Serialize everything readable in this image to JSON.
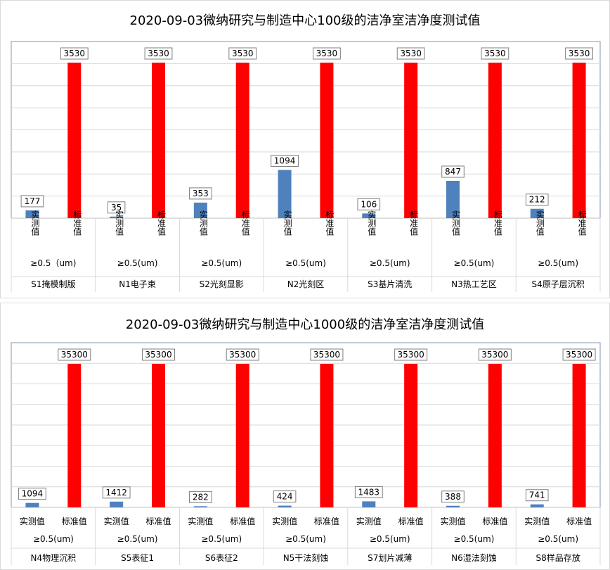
{
  "chart_data": [
    {
      "type": "bar",
      "title": "2020-09-03微纳研究与制造中心100级的洁净室洁净度测试值",
      "series": [
        {
          "name": "实测值",
          "color": "#4f81bd",
          "values": [
            177,
            35,
            353,
            1094,
            106,
            847,
            212
          ]
        },
        {
          "name": "标准值",
          "color": "#ff0000",
          "values": [
            3530,
            3530,
            3530,
            3530,
            3530,
            3530,
            3530
          ]
        }
      ],
      "particle_labels": [
        "≥0.5（um)",
        "≥0.5(um)",
        "≥0.5(um)",
        "≥0.5(um)",
        "≥0.5(um)",
        "≥0.5(um)",
        "≥0.5(um)"
      ],
      "categories": [
        "S1掩模制版",
        "N1电子束",
        "S2光刻显影",
        "N2光刻区",
        "S3基片清洗",
        "N3热工艺区",
        "S4原子层沉积"
      ],
      "ylim": [
        0,
        3530
      ],
      "grid": true,
      "vertical_series_labels": true
    },
    {
      "type": "bar",
      "title": "2020-09-03微纳研究与制造中心1000级的洁净室洁净度测试值",
      "series": [
        {
          "name": "实测值",
          "color": "#4f81bd",
          "values": [
            1094,
            1412,
            282,
            424,
            1483,
            388,
            741
          ]
        },
        {
          "name": "标准值",
          "color": "#ff0000",
          "values": [
            35300,
            35300,
            35300,
            35300,
            35300,
            35300,
            35300
          ]
        }
      ],
      "particle_labels": [
        "≥0.5(um)",
        "≥0.5(um)",
        "≥0.5(um)",
        "≥0.5(um)",
        "≥0.5(um)",
        "≥0.5(um)",
        "≥0.5(um)"
      ],
      "categories": [
        "N4物理沉积",
        "S5表征1",
        "S6表征2",
        "N5干法刻蚀",
        "S7划片减薄",
        "N6湿法刻蚀",
        "S8样品存放"
      ],
      "ylim": [
        0,
        35300
      ],
      "grid": true,
      "vertical_series_labels": false
    }
  ]
}
